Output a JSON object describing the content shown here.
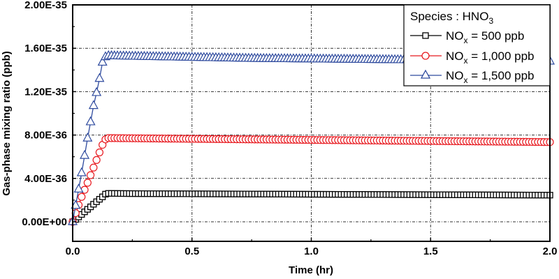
{
  "chart_data": {
    "type": "line",
    "title": "",
    "xlabel": "Time (hr)",
    "ylabel": "Gas-phase mixing ratio (ppb)",
    "xlim": [
      0,
      2.0
    ],
    "ylim": [
      -1.8e-36,
      2e-35
    ],
    "xticks": [
      0.0,
      0.5,
      1.0,
      1.5,
      2.0
    ],
    "xtick_labels": [
      "0.0",
      "0.5",
      "1.0",
      "1.5",
      "2.0"
    ],
    "yticks": [
      0,
      4e-36,
      8e-36,
      1.2e-35,
      1.6e-35,
      2e-35
    ],
    "ytick_labels": [
      "0.00E+00",
      "4.00E-36",
      "8.00E-36",
      "1.20E-35",
      "1.60E-35",
      "2.00E-35"
    ],
    "grid": true,
    "legend_position": "upper right",
    "legend_title": "Species : HNO3",
    "series": [
      {
        "name": "NOx = 500 ppb",
        "color": "#000000",
        "marker": "square",
        "x": [
          0.0,
          0.0125,
          0.025,
          0.0375,
          0.05,
          0.0625,
          0.075,
          0.0875,
          0.1,
          0.1125,
          0.125,
          0.1375,
          0.15,
          0.25,
          0.5,
          0.75,
          1.0,
          1.25,
          1.5,
          1.75,
          2.0
        ],
        "values": [
          0.0,
          2.2e-37,
          4.5e-37,
          6.8e-37,
          9.2e-37,
          1.15e-36,
          1.38e-36,
          1.62e-36,
          1.85e-36,
          2.08e-36,
          2.3e-36,
          2.55e-36,
          2.62e-36,
          2.6e-36,
          2.58e-36,
          2.56e-36,
          2.54e-36,
          2.52e-36,
          2.5e-36,
          2.48e-36,
          2.46e-36
        ]
      },
      {
        "name": "NOx = 1,000 ppb",
        "color": "#e8191f",
        "marker": "circle",
        "x": [
          0.0,
          0.0125,
          0.025,
          0.0375,
          0.05,
          0.0625,
          0.075,
          0.0875,
          0.1,
          0.1125,
          0.125,
          0.1375,
          0.15,
          0.25,
          0.5,
          0.75,
          1.0,
          1.25,
          1.5,
          1.75,
          2.0
        ],
        "values": [
          0.0,
          8e-37,
          1.55e-36,
          2.3e-36,
          2.95e-36,
          3.6e-36,
          4.3e-36,
          5e-36,
          5.7e-36,
          6.4e-36,
          7.1e-36,
          7.6e-36,
          7.72e-36,
          7.7e-36,
          7.65e-36,
          7.6e-36,
          7.55e-36,
          7.5e-36,
          7.45e-36,
          7.4e-36,
          7.35e-36
        ]
      },
      {
        "name": "NOx = 1,500 ppb",
        "color": "#2e4a9e",
        "marker": "triangle",
        "x": [
          0.0,
          0.0125,
          0.025,
          0.0375,
          0.05,
          0.0625,
          0.075,
          0.0875,
          0.1,
          0.1125,
          0.125,
          0.1375,
          0.15,
          0.25,
          0.5,
          0.75,
          1.0,
          1.25,
          1.5,
          1.75,
          2.0
        ],
        "values": [
          0.0,
          1.5e-36,
          3e-36,
          4.5e-36,
          6.1e-36,
          7.7e-36,
          9.2e-36,
          1.07e-35,
          1.19e-35,
          1.32e-35,
          1.47e-35,
          1.52e-35,
          1.53e-35,
          1.525e-35,
          1.515e-35,
          1.505e-35,
          1.5e-35,
          1.495e-35,
          1.49e-35,
          1.485e-35,
          1.48e-35
        ]
      }
    ]
  },
  "legend": {
    "title_main": "Species : HNO",
    "title_sub": "3",
    "items": [
      {
        "prefix": "NO",
        "sub": "x",
        "suffix": " = 500 ppb"
      },
      {
        "prefix": "NO",
        "sub": "x",
        "suffix": " = 1,000 ppb"
      },
      {
        "prefix": "NO",
        "sub": "x",
        "suffix": " = 1,500 ppb"
      }
    ]
  }
}
